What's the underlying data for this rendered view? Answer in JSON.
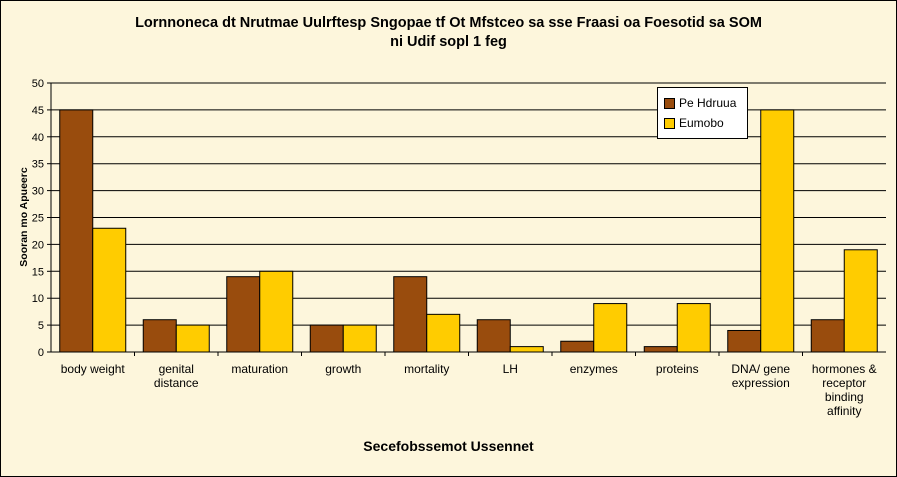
{
  "chart_data": {
    "type": "bar",
    "title_lines": [
      "Lornnoneca dt Nrutmae Uulrftesp Sngopae tf Ot Mfstceo sa sse Fraasi oa  Foesotid sa SOM",
      "ni Udif sopl 1 feg"
    ],
    "xlabel": "Secefobssemot Ussennet",
    "ylabel": "Sooran mo Apueerc",
    "ylim": [
      0,
      50
    ],
    "yticks": [
      0,
      5,
      10,
      15,
      20,
      25,
      30,
      35,
      40,
      45,
      50
    ],
    "grid": true,
    "legend_position": "top-right",
    "categories": [
      [
        "body weight"
      ],
      [
        "genital",
        "distance"
      ],
      [
        "maturation"
      ],
      [
        "growth"
      ],
      [
        "mortality"
      ],
      [
        "LH"
      ],
      [
        "enzymes"
      ],
      [
        "proteins"
      ],
      [
        "DNA/ gene",
        "expression"
      ],
      [
        "hormones &",
        "receptor",
        "binding",
        "affinity"
      ]
    ],
    "series": [
      {
        "name": "Pe Hdruua",
        "color": "#994c0d",
        "values": [
          45,
          6,
          14,
          5,
          14,
          6,
          2,
          1,
          4,
          6
        ]
      },
      {
        "name": "Eumobo",
        "color": "#ffcc00",
        "values": [
          23,
          5,
          15,
          5,
          7,
          1,
          9,
          9,
          45,
          19
        ]
      }
    ]
  }
}
